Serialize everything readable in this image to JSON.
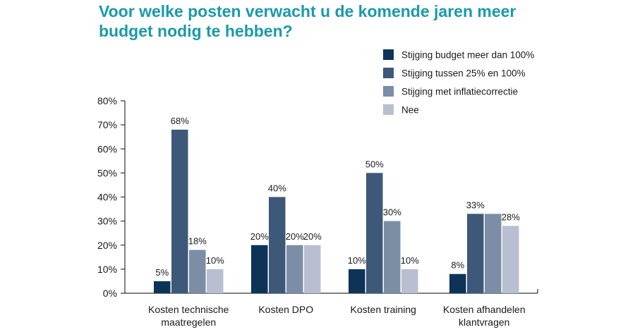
{
  "title_lines": [
    "Voor welke posten verwacht u de komende jaren meer",
    "budget nodig te hebben?"
  ],
  "colors": {
    "title": "#1a9aa8",
    "series": [
      "#0d3356",
      "#3d5878",
      "#7b8ea6",
      "#b8bfd0"
    ]
  },
  "chart_data": {
    "type": "bar",
    "categories": [
      [
        "Kosten technische",
        "maatregelen"
      ],
      [
        "Kosten DPO"
      ],
      [
        "Kosten training"
      ],
      [
        "Kosten afhandelen",
        "klantvragen"
      ]
    ],
    "series": [
      {
        "name": "Stijging budget meer dan 100%",
        "values": [
          5,
          20,
          10,
          8
        ],
        "labels": [
          "5%",
          "20%",
          "10%",
          "8%"
        ]
      },
      {
        "name": "Stijging tussen 25% en 100%",
        "values": [
          68,
          40,
          50,
          33
        ],
        "labels": [
          "68%",
          "40%",
          "50%",
          "33%"
        ]
      },
      {
        "name": "Stijging met inflatiecorrectie",
        "values": [
          18,
          20,
          30,
          33
        ],
        "labels": [
          "18%",
          "20%",
          "30%",
          ""
        ]
      },
      {
        "name": "Nee",
        "values": [
          10,
          20,
          10,
          28
        ],
        "labels": [
          "10%",
          "20%",
          "10%",
          "28%"
        ]
      }
    ],
    "ylim": [
      0,
      80
    ],
    "yticks": [
      "0%",
      "10%",
      "20%",
      "30%",
      "40%",
      "50%",
      "60%",
      "70%",
      "80%"
    ],
    "grid": false,
    "legend_position": "top-right"
  }
}
